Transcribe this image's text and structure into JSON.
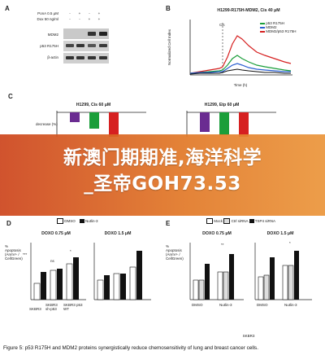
{
  "panel_a": {
    "letter": "A",
    "rows": [
      {
        "label": "PonA 0.5 μM",
        "values": [
          "-",
          "+",
          "-",
          "+"
        ]
      },
      {
        "label": "Dox 50 ng/ml",
        "values": [
          "-",
          "-",
          "+",
          "+"
        ]
      }
    ],
    "blots": [
      "MDM2",
      "p53 R175H",
      "β-actin"
    ]
  },
  "panel_b": {
    "letter": "B",
    "title": "H1299-R175H-MDM2, Cis 40 μM",
    "ylabel": "Normalized Cell Index",
    "xlabel": "Time (h)",
    "annotation": "Cis",
    "legend": [
      "p53 R175H",
      "MDM2",
      "MDM2/p53 R175H"
    ]
  },
  "panel_c": {
    "letter": "C",
    "left_title": "H1299, Cis 60 μM",
    "right_title": "H1299, Etp 60 μM",
    "ylabel": "decrease (%)"
  },
  "panel_d": {
    "letter": "D",
    "legend": [
      "DMSO",
      "Nutlin-3"
    ],
    "left_title": "DOXO 0.75 μM",
    "right_title": "DOXO 1.5 μM",
    "ylabel": "% Apoptosis (AnnV+ / CellGreen)",
    "xlabels": [
      "SKBR3",
      "SKBR3 sh-p53",
      "SKBR3 p53 WT"
    ],
    "sig": [
      "***",
      "ns",
      "*"
    ]
  },
  "panel_e": {
    "letter": "E",
    "legend": [
      "Mock",
      "Ctrl siRNA",
      "TSP4 siRNA"
    ],
    "left_title": "DOXO 0.75 μM",
    "right_title": "DOXO 1.5 μM",
    "ylabel": "% Apoptosis (AnnV+ / CellGreen)",
    "xlabels": [
      "DMSO",
      "Nutlin-3"
    ],
    "group": "SKBR3",
    "sig": [
      "**",
      "*"
    ]
  },
  "banner": {
    "line1": "新澳门期期准,海洋科学",
    "line2": "_圣帝GOH73.53"
  },
  "caption": "Figure 5: p53 R175H and MDM2 proteins synergistically reduce chemosensitivity of lung and breast cancer cells.",
  "colors": {
    "green": "#1a9e3a",
    "purple": "#6a2c91",
    "red": "#d62020",
    "blue": "#2b5fd1",
    "black": "#111111",
    "banner": "#d9572b"
  }
}
